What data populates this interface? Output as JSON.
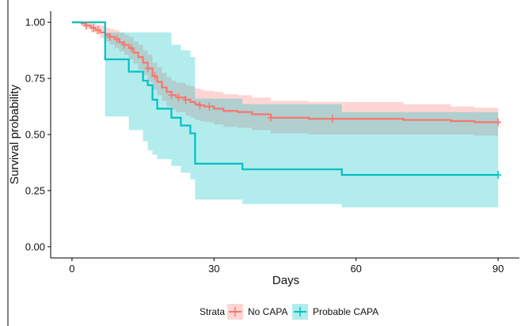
{
  "chart_data": {
    "type": "line",
    "subtype": "kaplan-meier-survival",
    "xlabel": "Days",
    "ylabel": "Survival probability",
    "xlim": [
      -4.5,
      94.5
    ],
    "ylim": [
      -0.05,
      1.05
    ],
    "x_ticks": [
      0,
      30,
      60,
      90
    ],
    "x_tick_labels": [
      "0",
      "30",
      "60",
      "90"
    ],
    "y_ticks": [
      0.0,
      0.25,
      0.5,
      0.75,
      1.0
    ],
    "y_tick_labels": [
      "0.00",
      "0.25",
      "0.50",
      "0.75",
      "1.00"
    ],
    "grid": false,
    "legend": {
      "title": "Strata",
      "position": "bottom"
    },
    "series": [
      {
        "name": "No CAPA",
        "color": "#F8766D",
        "band_color": "#F8766D",
        "steps": [
          [
            0,
            1.0
          ],
          [
            2,
            0.995
          ],
          [
            3,
            0.985
          ],
          [
            4,
            0.975
          ],
          [
            5,
            0.965
          ],
          [
            6,
            0.955
          ],
          [
            7,
            0.945
          ],
          [
            8,
            0.935
          ],
          [
            9,
            0.925
          ],
          [
            10,
            0.91
          ],
          [
            11,
            0.9
          ],
          [
            12,
            0.885
          ],
          [
            13,
            0.865
          ],
          [
            14,
            0.845
          ],
          [
            15,
            0.82
          ],
          [
            16,
            0.795
          ],
          [
            17,
            0.76
          ],
          [
            18,
            0.735
          ],
          [
            19,
            0.71
          ],
          [
            20,
            0.69
          ],
          [
            21,
            0.675
          ],
          [
            22,
            0.665
          ],
          [
            24,
            0.655
          ],
          [
            25,
            0.645
          ],
          [
            26,
            0.635
          ],
          [
            27,
            0.63
          ],
          [
            28,
            0.625
          ],
          [
            30,
            0.615
          ],
          [
            32,
            0.605
          ],
          [
            35,
            0.6
          ],
          [
            38,
            0.59
          ],
          [
            42,
            0.575
          ],
          [
            50,
            0.57
          ],
          [
            70,
            0.565
          ],
          [
            80,
            0.56
          ],
          [
            85,
            0.555
          ],
          [
            90,
            0.555
          ]
        ],
        "lower": [
          [
            0,
            1.0
          ],
          [
            2,
            0.98
          ],
          [
            3,
            0.97
          ],
          [
            4,
            0.955
          ],
          [
            5,
            0.945
          ],
          [
            6,
            0.93
          ],
          [
            7,
            0.915
          ],
          [
            8,
            0.9
          ],
          [
            9,
            0.885
          ],
          [
            10,
            0.87
          ],
          [
            11,
            0.855
          ],
          [
            12,
            0.835
          ],
          [
            13,
            0.815
          ],
          [
            14,
            0.79
          ],
          [
            15,
            0.765
          ],
          [
            16,
            0.735
          ],
          [
            17,
            0.7
          ],
          [
            18,
            0.675
          ],
          [
            19,
            0.65
          ],
          [
            20,
            0.625
          ],
          [
            21,
            0.61
          ],
          [
            22,
            0.6
          ],
          [
            24,
            0.585
          ],
          [
            25,
            0.575
          ],
          [
            26,
            0.565
          ],
          [
            27,
            0.56
          ],
          [
            28,
            0.555
          ],
          [
            30,
            0.545
          ],
          [
            32,
            0.535
          ],
          [
            35,
            0.53
          ],
          [
            38,
            0.52
          ],
          [
            42,
            0.505
          ],
          [
            50,
            0.5
          ],
          [
            70,
            0.5
          ],
          [
            80,
            0.5
          ],
          [
            85,
            0.495
          ],
          [
            90,
            0.495
          ]
        ],
        "upper": [
          [
            0,
            1.0
          ],
          [
            2,
            1.0
          ],
          [
            3,
            1.0
          ],
          [
            4,
            0.995
          ],
          [
            5,
            0.99
          ],
          [
            6,
            0.985
          ],
          [
            7,
            0.975
          ],
          [
            8,
            0.97
          ],
          [
            9,
            0.965
          ],
          [
            10,
            0.955
          ],
          [
            11,
            0.945
          ],
          [
            12,
            0.935
          ],
          [
            13,
            0.915
          ],
          [
            14,
            0.9
          ],
          [
            15,
            0.875
          ],
          [
            16,
            0.855
          ],
          [
            17,
            0.82
          ],
          [
            18,
            0.8
          ],
          [
            19,
            0.775
          ],
          [
            20,
            0.755
          ],
          [
            21,
            0.74
          ],
          [
            22,
            0.73
          ],
          [
            24,
            0.72
          ],
          [
            25,
            0.715
          ],
          [
            26,
            0.705
          ],
          [
            27,
            0.7
          ],
          [
            28,
            0.695
          ],
          [
            30,
            0.69
          ],
          [
            32,
            0.68
          ],
          [
            35,
            0.675
          ],
          [
            38,
            0.665
          ],
          [
            42,
            0.65
          ],
          [
            50,
            0.645
          ],
          [
            70,
            0.635
          ],
          [
            80,
            0.625
          ],
          [
            85,
            0.62
          ],
          [
            90,
            0.62
          ]
        ],
        "censored": [
          [
            3,
            0.985
          ],
          [
            4.5,
            0.975
          ],
          [
            5.5,
            0.965
          ],
          [
            8,
            0.935
          ],
          [
            9.5,
            0.925
          ],
          [
            11,
            0.9
          ],
          [
            12.5,
            0.885
          ],
          [
            16,
            0.795
          ],
          [
            17.5,
            0.76
          ],
          [
            21,
            0.675
          ],
          [
            22.5,
            0.665
          ],
          [
            24,
            0.655
          ],
          [
            27,
            0.63
          ],
          [
            29,
            0.625
          ],
          [
            42,
            0.575
          ],
          [
            55,
            0.57
          ],
          [
            90,
            0.555
          ]
        ]
      },
      {
        "name": "Probable CAPA",
        "color": "#00BFC4",
        "band_color": "#00BFC4",
        "steps": [
          [
            0,
            1.0
          ],
          [
            7,
            0.835
          ],
          [
            12,
            0.78
          ],
          [
            15,
            0.74
          ],
          [
            16,
            0.72
          ],
          [
            17,
            0.655
          ],
          [
            18,
            0.615
          ],
          [
            21,
            0.575
          ],
          [
            23,
            0.54
          ],
          [
            25,
            0.505
          ],
          [
            26,
            0.37
          ],
          [
            36,
            0.345
          ],
          [
            57,
            0.32
          ],
          [
            90,
            0.32
          ]
        ],
        "lower": [
          [
            0,
            1.0
          ],
          [
            7,
            0.58
          ],
          [
            12,
            0.52
          ],
          [
            15,
            0.47
          ],
          [
            16,
            0.43
          ],
          [
            17,
            0.41
          ],
          [
            18,
            0.39
          ],
          [
            21,
            0.36
          ],
          [
            23,
            0.33
          ],
          [
            25,
            0.3
          ],
          [
            26,
            0.21
          ],
          [
            36,
            0.19
          ],
          [
            57,
            0.175
          ],
          [
            90,
            0.175
          ]
        ],
        "upper": [
          [
            0,
            1.0
          ],
          [
            7,
            0.955
          ],
          [
            12,
            0.955
          ],
          [
            15,
            0.955
          ],
          [
            16,
            0.955
          ],
          [
            17,
            0.955
          ],
          [
            18,
            0.955
          ],
          [
            21,
            0.9
          ],
          [
            23,
            0.875
          ],
          [
            25,
            0.845
          ],
          [
            26,
            0.66
          ],
          [
            36,
            0.635
          ],
          [
            57,
            0.6
          ],
          [
            90,
            0.6
          ]
        ],
        "censored": [
          [
            90,
            0.32
          ]
        ]
      }
    ]
  }
}
